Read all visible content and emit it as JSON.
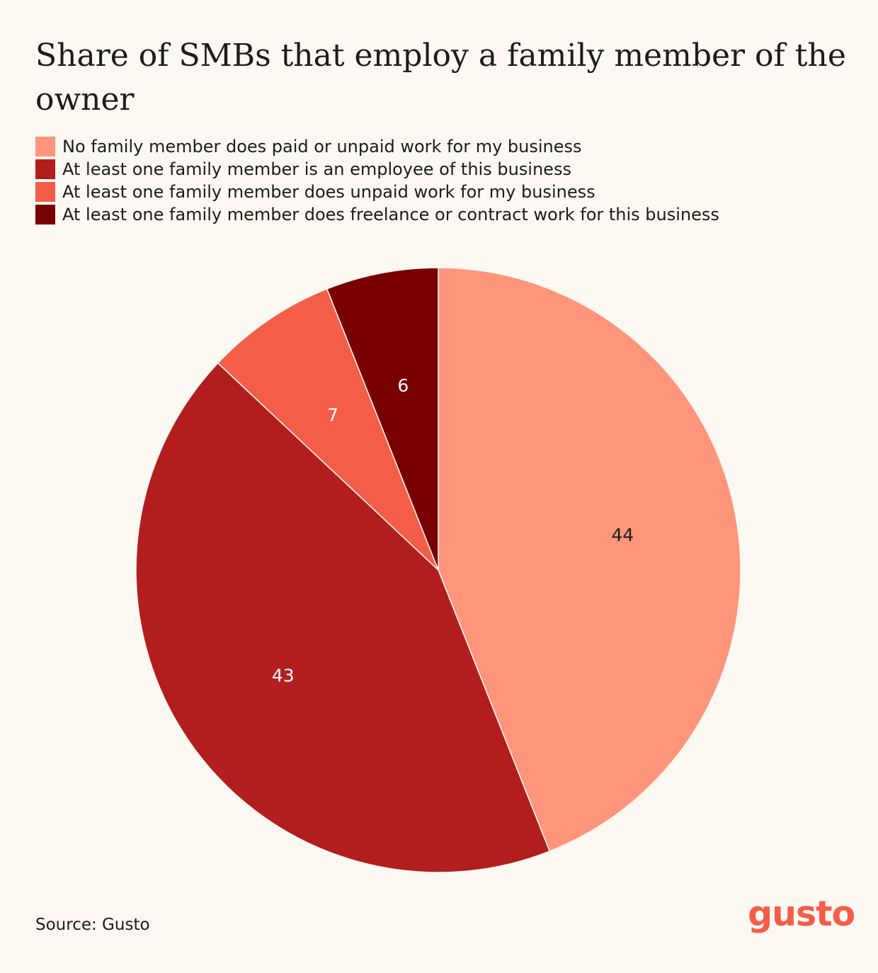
{
  "title": "Share of SMBs that employ a family member of the owner",
  "source": "Source: Gusto",
  "logo_text": "gusto",
  "chart_data": {
    "type": "pie",
    "title": "Share of SMBs that employ a family member of the owner",
    "legend_position": "top-left",
    "start_angle": "12 o'clock",
    "direction": "clockwise",
    "slices": [
      {
        "label": "No family member does paid or unpaid work for my business",
        "value": 44,
        "color": "#ff957a",
        "label_color": "#1c1c1c"
      },
      {
        "label": "At least one family member is an employee of this business",
        "value": 43,
        "color": "#b21e1e",
        "label_color": "#ffffff"
      },
      {
        "label": "At least one family member does unpaid work for my business",
        "value": 7,
        "color": "#f45d48",
        "label_color": "#ffffff"
      },
      {
        "label": "At least one family member does freelance or contract work for this business",
        "value": 6,
        "color": "#790000",
        "label_color": "#ffffff"
      }
    ]
  },
  "colors": {
    "background": "#fdf8f1",
    "text": "#1c1c1c",
    "brand": "#f45d48"
  }
}
